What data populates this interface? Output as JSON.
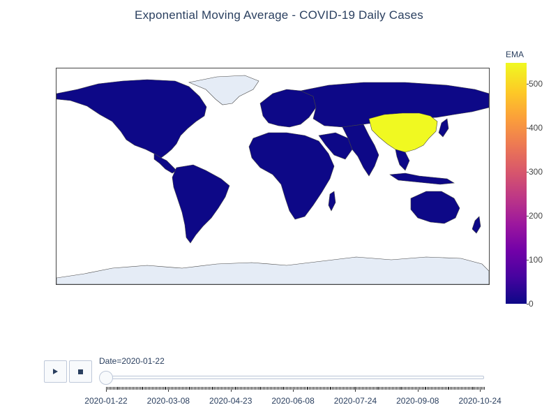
{
  "title": "Exponential Moving Average - COVID-19 Daily Cases",
  "colors": {
    "ocean": "#ffffff",
    "land_no_data": "#e5ecf6",
    "border": "#444444",
    "scale": [
      "#0d0887",
      "#46039f",
      "#7201a8",
      "#9c179e",
      "#bd3786",
      "#d8576b",
      "#ed7953",
      "#fb9f3a",
      "#fdca26",
      "#f0f921"
    ],
    "low": "#0d0887",
    "high": "#f0f921"
  },
  "map": {
    "highlighted_region": "China",
    "highlighted_value": 548,
    "other_regions_value": 0
  },
  "colorbar": {
    "title": "EMA",
    "min": 0,
    "max": 548,
    "ticks": [
      "0",
      "100",
      "200",
      "300",
      "400",
      "500"
    ],
    "tick_values": [
      0,
      100,
      200,
      300,
      400,
      500
    ]
  },
  "controls": {
    "play_icon": "play-icon",
    "stop_icon": "stop-icon"
  },
  "slider": {
    "current_label": "Date=2020-01-22",
    "tick_labels": [
      "2020-01-22",
      "2020-03-08",
      "2020-04-23",
      "2020-06-08",
      "2020-07-24",
      "2020-09-08",
      "2020-10-24"
    ],
    "current_index": 0
  }
}
